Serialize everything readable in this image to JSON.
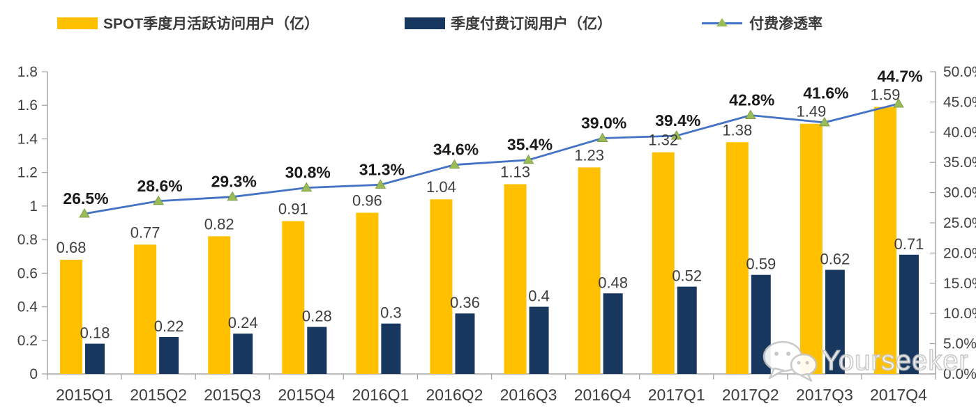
{
  "legend": {
    "items": [
      {
        "label": "SPOT季度月活跃访问用户（亿）",
        "type": "bar",
        "color": "#FFC000"
      },
      {
        "label": "季度付费订阅用户（亿）",
        "type": "bar",
        "color": "#17375E"
      },
      {
        "label": "付费渗透率",
        "type": "line",
        "color": "#4472C4",
        "marker_color": "#9BBB59"
      }
    ]
  },
  "chart_data": {
    "type": "bar",
    "subtype": "combo-bar-line",
    "categories": [
      "2015Q1",
      "2015Q2",
      "2015Q3",
      "2015Q4",
      "2016Q1",
      "2016Q2",
      "2016Q3",
      "2016Q4",
      "2017Q1",
      "2017Q2",
      "2017Q3",
      "2017Q4"
    ],
    "series": [
      {
        "name": "SPOT季度月活跃访问用户（亿）",
        "type": "bar",
        "axis": "left",
        "color": "#FFC000",
        "values": [
          0.68,
          0.77,
          0.82,
          0.91,
          0.96,
          1.04,
          1.13,
          1.23,
          1.32,
          1.38,
          1.49,
          1.59
        ],
        "labels": [
          "0.68",
          "0.77",
          "0.82",
          "0.91",
          "0.96",
          "1.04",
          "1.13",
          "1.23",
          "1.32",
          "1.38",
          "1.49",
          "1.59"
        ]
      },
      {
        "name": "季度付费订阅用户（亿）",
        "type": "bar",
        "axis": "left",
        "color": "#17375E",
        "values": [
          0.18,
          0.22,
          0.24,
          0.28,
          0.3,
          0.36,
          0.4,
          0.48,
          0.52,
          0.59,
          0.62,
          0.71
        ],
        "labels": [
          "0.18",
          "0.22",
          "0.24",
          "0.28",
          "0.3",
          "0.36",
          "0.4",
          "0.48",
          "0.52",
          "0.59",
          "0.62",
          "0.71"
        ]
      },
      {
        "name": "付费渗透率",
        "type": "line",
        "axis": "right",
        "color": "#4472C4",
        "marker": "triangle",
        "marker_color": "#9BBB59",
        "values": [
          26.5,
          28.6,
          29.3,
          30.8,
          31.3,
          34.6,
          35.4,
          39.0,
          39.4,
          42.8,
          41.6,
          44.7
        ],
        "labels": [
          "26.5%",
          "28.6%",
          "29.3%",
          "30.8%",
          "31.3%",
          "34.6%",
          "35.4%",
          "39.0%",
          "39.4%",
          "42.8%",
          "41.6%",
          "44.7%"
        ]
      }
    ],
    "left_axis": {
      "min": 0,
      "max": 1.8,
      "step": 0.2,
      "ticks": [
        "0",
        "0.2",
        "0.4",
        "0.6",
        "0.8",
        "1",
        "1.2",
        "1.4",
        "1.6",
        "1.8"
      ]
    },
    "right_axis": {
      "min": 0,
      "max": 50,
      "step": 5,
      "ticks": [
        "0.0%",
        "5.0%",
        "10.0%",
        "15.0%",
        "20.0%",
        "25.0%",
        "30.0%",
        "35.0%",
        "40.0%",
        "45.0%",
        "50.0%"
      ]
    },
    "grid": false,
    "legend_position": "top",
    "title": ""
  },
  "watermark": {
    "text": "Yourseeker",
    "icon": "wechat-icon"
  },
  "colors": {
    "axis": "#A6A6A6",
    "bar_mau": "#FFC000",
    "bar_subs": "#17375E",
    "line": "#4472C4",
    "marker": "#9BBB59",
    "value_label": "#3f3f3f",
    "percent_label": "#1a1a1a"
  }
}
